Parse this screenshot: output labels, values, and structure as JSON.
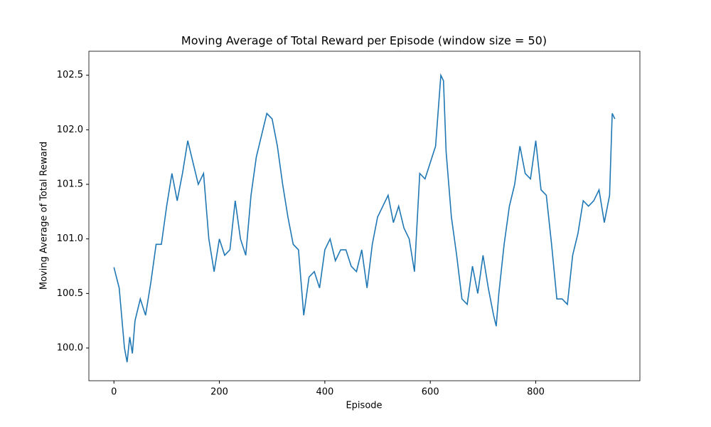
{
  "chart_data": {
    "type": "line",
    "title": "Moving Average of Total Reward per Episode (window size = 50)",
    "x_label": "Episode",
    "y_label": "Moving Average of Total Reward",
    "x": [
      0,
      10,
      20,
      25,
      30,
      35,
      40,
      50,
      60,
      70,
      80,
      90,
      100,
      110,
      120,
      130,
      140,
      150,
      160,
      170,
      180,
      190,
      200,
      210,
      220,
      230,
      240,
      250,
      260,
      270,
      280,
      290,
      300,
      310,
      320,
      330,
      340,
      350,
      360,
      370,
      380,
      390,
      400,
      410,
      420,
      430,
      440,
      450,
      460,
      470,
      480,
      490,
      500,
      510,
      520,
      530,
      540,
      550,
      560,
      570,
      580,
      590,
      600,
      610,
      620,
      625,
      630,
      640,
      650,
      660,
      670,
      680,
      690,
      700,
      710,
      720,
      725,
      730,
      740,
      750,
      760,
      770,
      780,
      790,
      800,
      810,
      820,
      830,
      840,
      850,
      860,
      870,
      880,
      890,
      900,
      910,
      920,
      930,
      940,
      945,
      950
    ],
    "series": [
      {
        "name": "Moving Average",
        "color": "#1f77b4",
        "values": [
          100.74,
          100.55,
          100.0,
          99.87,
          100.1,
          99.95,
          100.25,
          100.45,
          100.3,
          100.6,
          100.95,
          100.95,
          101.3,
          101.6,
          101.35,
          101.6,
          101.9,
          101.7,
          101.5,
          101.6,
          101.0,
          100.7,
          101.0,
          100.85,
          100.9,
          101.35,
          101.0,
          100.85,
          101.4,
          101.75,
          101.95,
          102.15,
          102.1,
          101.85,
          101.5,
          101.2,
          100.95,
          100.9,
          100.3,
          100.65,
          100.7,
          100.55,
          100.9,
          101.0,
          100.8,
          100.9,
          100.9,
          100.75,
          100.7,
          100.9,
          100.55,
          100.95,
          101.2,
          101.3,
          101.4,
          101.15,
          101.3,
          101.1,
          101.0,
          100.7,
          101.6,
          101.55,
          101.7,
          101.85,
          102.5,
          102.45,
          101.8,
          101.2,
          100.85,
          100.45,
          100.4,
          100.75,
          100.5,
          100.85,
          100.55,
          100.3,
          100.2,
          100.5,
          100.95,
          101.3,
          101.5,
          101.85,
          101.6,
          101.55,
          101.9,
          101.45,
          101.4,
          100.95,
          100.45,
          100.45,
          100.4,
          100.85,
          101.05,
          101.35,
          101.3,
          101.35,
          101.45,
          101.15,
          101.4,
          102.15,
          102.1
        ]
      }
    ],
    "xlim": [
      -47.5,
      997.5
    ],
    "ylim": [
      99.7,
      102.72
    ],
    "xticks": [
      0,
      200,
      400,
      600,
      800
    ],
    "yticks": [
      {
        "value": 100,
        "label": "100.0"
      },
      100.5,
      {
        "value": 101,
        "label": "101.0"
      },
      101.5,
      {
        "value": 102,
        "label": "102.0"
      },
      102.5
    ]
  }
}
